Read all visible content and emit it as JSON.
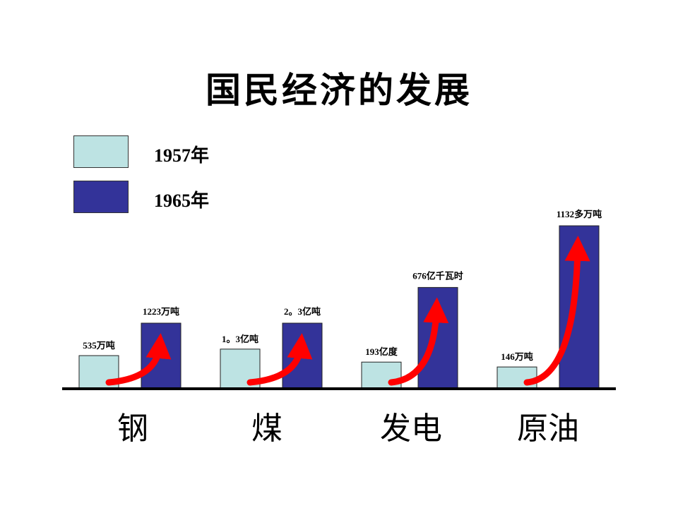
{
  "title": "国民经济的发展",
  "legend": [
    {
      "label": "1957年",
      "color": "#bde3e3"
    },
    {
      "label": "1965年",
      "color": "#333399"
    }
  ],
  "chart_data": {
    "type": "bar",
    "title": "国民经济的发展",
    "categories": [
      "钢",
      "煤",
      "发电",
      "原油"
    ],
    "series": [
      {
        "name": "1957年",
        "color": "#bde3e3",
        "values": [
          535,
          1.3,
          193,
          146
        ],
        "labels": [
          "535万吨",
          "1。3亿吨",
          "193亿度",
          "146万吨"
        ]
      },
      {
        "name": "1965年",
        "color": "#333399",
        "values": [
          1223,
          2.3,
          676,
          1132
        ],
        "labels": [
          "1223万吨",
          "2。3亿吨",
          "676亿千瓦时",
          "1132多万吨"
        ]
      }
    ],
    "display_heights": [
      [
        0.2,
        0.4
      ],
      [
        0.24,
        0.4
      ],
      [
        0.16,
        0.62
      ],
      [
        0.13,
        1.0
      ]
    ],
    "arrow_color": "#ff0000",
    "grid": false,
    "legend_position": "top-left"
  }
}
